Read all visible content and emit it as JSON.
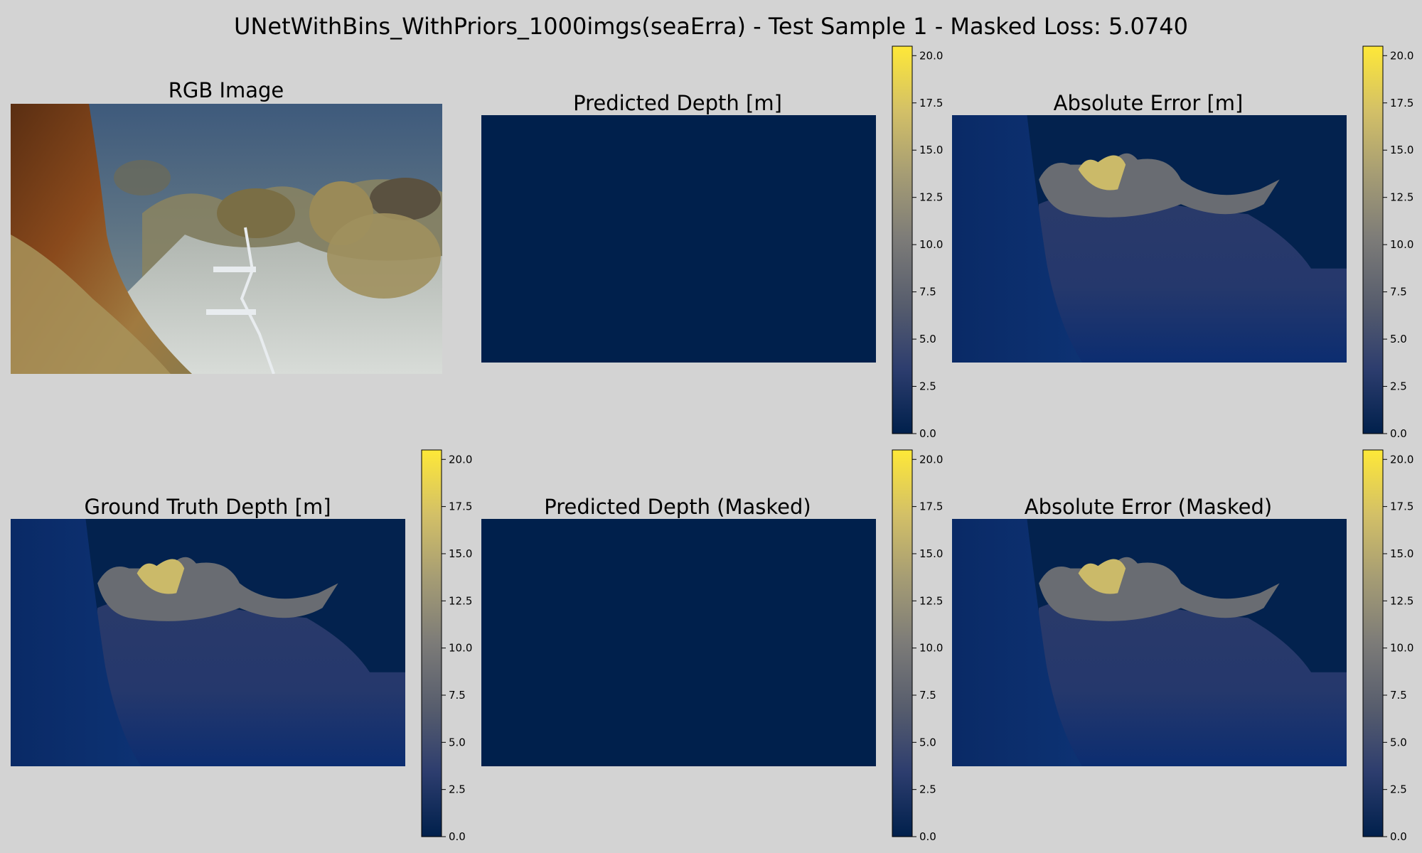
{
  "figure": {
    "suptitle": "UNetWithBins_WithPriors_1000imgs(seaErra) - Test Sample 1 - Masked Loss: 5.0740",
    "background": "#d3d3d3"
  },
  "colormap": {
    "name": "cividis",
    "stops": [
      "#00204c",
      "#2d3d6e",
      "#575d6d",
      "#7c7b78",
      "#a59c74",
      "#d3c067",
      "#fee838"
    ]
  },
  "chart_data": [
    {
      "type": "image",
      "id": "rgb",
      "title": "RGB Image",
      "content": "underwater photo: rock wall on left, sandy seafloor with measuring tape, rocky mounds in background",
      "colorbar": false
    },
    {
      "type": "heatmap",
      "id": "pred",
      "title": "Predicted Depth [m]",
      "content": "uniform",
      "value": 0.0,
      "colorbar": true,
      "clim": [
        0,
        20.5
      ],
      "ticks": [
        0.0,
        2.5,
        5.0,
        7.5,
        10.0,
        12.5,
        15.0,
        17.5,
        20.0
      ]
    },
    {
      "type": "heatmap",
      "id": "err",
      "title": "Absolute Error [m]",
      "content": "depth-map",
      "colorbar": true,
      "clim": [
        0,
        20.5
      ],
      "ticks": [
        0.0,
        2.5,
        5.0,
        7.5,
        10.0,
        12.5,
        15.0,
        17.5,
        20.0
      ]
    },
    {
      "type": "heatmap",
      "id": "gt",
      "title": "Ground Truth Depth [m]",
      "content": "depth-map",
      "colorbar": true,
      "clim": [
        0,
        20.5
      ],
      "ticks": [
        0.0,
        2.5,
        5.0,
        7.5,
        10.0,
        12.5,
        15.0,
        17.5,
        20.0
      ]
    },
    {
      "type": "heatmap",
      "id": "predm",
      "title": "Predicted Depth (Masked)",
      "content": "uniform",
      "value": 0.0,
      "colorbar": true,
      "clim": [
        0,
        20.5
      ],
      "ticks": [
        0.0,
        2.5,
        5.0,
        7.5,
        10.0,
        12.5,
        15.0,
        17.5,
        20.0
      ]
    },
    {
      "type": "heatmap",
      "id": "errm",
      "title": "Absolute Error (Masked)",
      "content": "depth-map",
      "colorbar": true,
      "clim": [
        0,
        20.5
      ],
      "ticks": [
        0.0,
        2.5,
        5.0,
        7.5,
        10.0,
        12.5,
        15.0,
        17.5,
        20.0
      ]
    }
  ]
}
